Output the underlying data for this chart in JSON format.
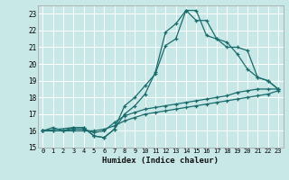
{
  "title": "",
  "xlabel": "Humidex (Indice chaleur)",
  "ylabel": "",
  "background_color": "#c8e8e8",
  "grid_color": "#ffffff",
  "line_color": "#1a6b6b",
  "xlim": [
    -0.5,
    23.5
  ],
  "ylim": [
    15,
    23.5
  ],
  "xticks": [
    0,
    1,
    2,
    3,
    4,
    5,
    6,
    7,
    8,
    9,
    10,
    11,
    12,
    13,
    14,
    15,
    16,
    17,
    18,
    19,
    20,
    21,
    22,
    23
  ],
  "yticks": [
    15,
    16,
    17,
    18,
    19,
    20,
    21,
    22,
    23
  ],
  "lines": [
    {
      "x": [
        0,
        1,
        2,
        3,
        4,
        5,
        6,
        7,
        8,
        9,
        10,
        11,
        12,
        13,
        14,
        15,
        16,
        17,
        18,
        19,
        20,
        21,
        22,
        23
      ],
      "y": [
        16.0,
        16.2,
        16.0,
        16.2,
        16.2,
        15.7,
        15.6,
        16.1,
        17.5,
        18.0,
        18.7,
        19.4,
        21.1,
        21.5,
        23.2,
        23.2,
        21.7,
        21.5,
        21.3,
        20.6,
        19.7,
        19.2,
        19.0,
        18.5
      ]
    },
    {
      "x": [
        0,
        1,
        2,
        3,
        4,
        5,
        6,
        7,
        8,
        9,
        10,
        11,
        12,
        13,
        14,
        15,
        16,
        17,
        18,
        19,
        20,
        21,
        22,
        23
      ],
      "y": [
        16.0,
        16.0,
        16.0,
        16.1,
        16.1,
        15.9,
        16.0,
        16.5,
        16.9,
        17.1,
        17.3,
        17.4,
        17.5,
        17.6,
        17.7,
        17.8,
        17.9,
        18.0,
        18.1,
        18.3,
        18.4,
        18.5,
        18.5,
        18.5
      ]
    },
    {
      "x": [
        0,
        1,
        2,
        3,
        4,
        5,
        6,
        7,
        8,
        9,
        10,
        11,
        12,
        13,
        14,
        15,
        16,
        17,
        18,
        19,
        20,
        21,
        22,
        23
      ],
      "y": [
        16.0,
        16.0,
        16.0,
        16.0,
        16.0,
        16.0,
        16.1,
        16.3,
        16.6,
        16.8,
        17.0,
        17.1,
        17.2,
        17.3,
        17.4,
        17.5,
        17.6,
        17.7,
        17.8,
        17.9,
        18.0,
        18.1,
        18.2,
        18.4
      ]
    },
    {
      "x": [
        0,
        3,
        4,
        5,
        6,
        7,
        8,
        9,
        10,
        11,
        12,
        13,
        14,
        15,
        16,
        17,
        18,
        19,
        20,
        21,
        22,
        23
      ],
      "y": [
        16.0,
        16.2,
        16.2,
        15.7,
        15.6,
        16.1,
        17.0,
        17.5,
        18.2,
        19.5,
        21.9,
        22.4,
        23.2,
        22.6,
        22.6,
        21.5,
        21.0,
        21.0,
        20.8,
        19.2,
        19.0,
        18.5
      ]
    }
  ]
}
